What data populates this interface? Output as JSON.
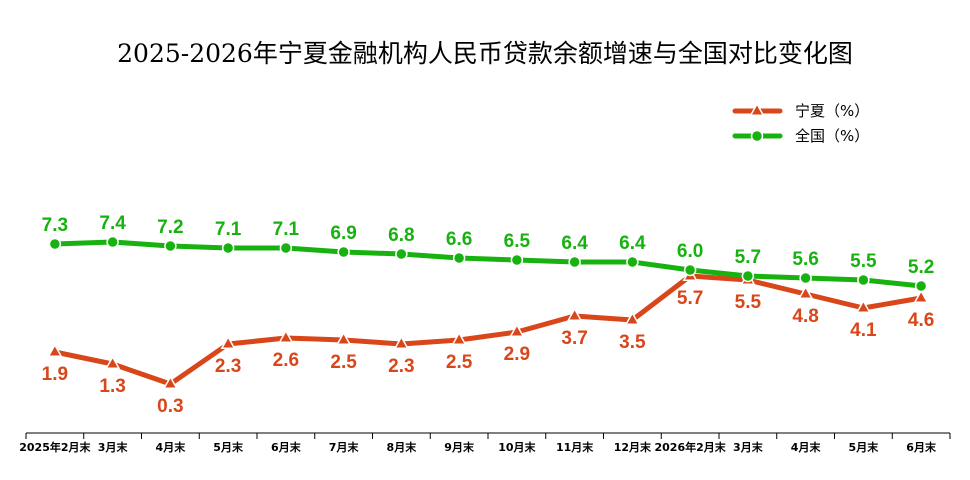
{
  "chart_data": {
    "type": "line",
    "title": "2025-2026年宁夏金融机构人民币贷款余额增速与全国对比变化图",
    "categories": [
      "2025年2月末",
      "3月末",
      "4月末",
      "5月末",
      "6月末",
      "7月末",
      "8月末",
      "9月末",
      "10月末",
      "11月末",
      "12月末",
      "2026年2月末",
      "3月末",
      "4月末",
      "5月末",
      "6月末"
    ],
    "series": [
      {
        "name": "宁夏（%）",
        "color": "#d9461a",
        "marker": "triangle",
        "values": [
          1.9,
          1.3,
          0.3,
          2.3,
          2.6,
          2.5,
          2.3,
          2.5,
          2.9,
          3.7,
          3.5,
          5.7,
          5.5,
          4.8,
          4.1,
          4.6
        ]
      },
      {
        "name": "全国（%）",
        "color": "#17b20f",
        "marker": "circle",
        "values": [
          7.3,
          7.4,
          7.2,
          7.1,
          7.1,
          6.9,
          6.8,
          6.6,
          6.5,
          6.4,
          6.4,
          6.0,
          5.7,
          5.6,
          5.5,
          5.2
        ]
      }
    ],
    "legend_position": "top-right",
    "grid": false,
    "xlabel": "",
    "ylabel": ""
  }
}
